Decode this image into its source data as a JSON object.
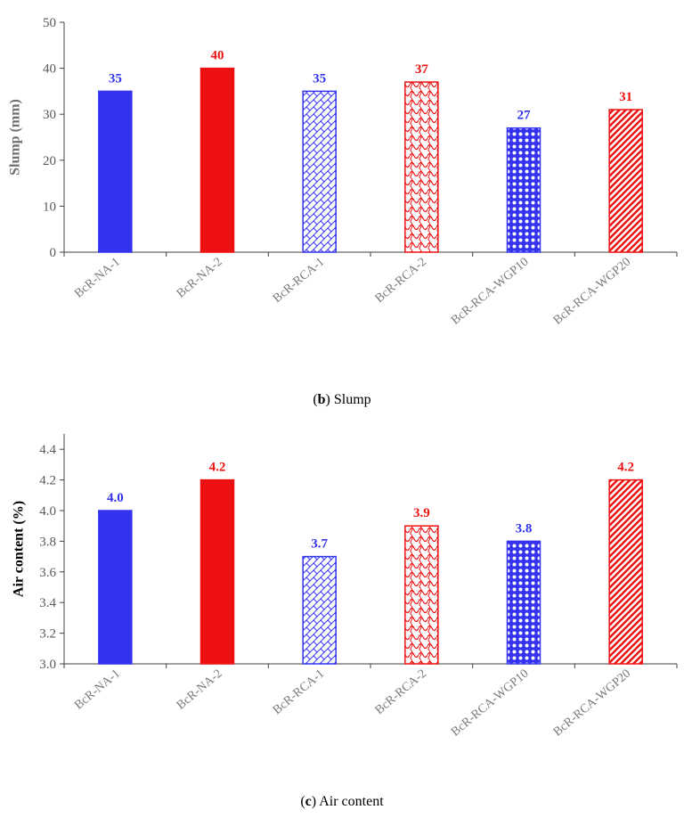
{
  "colors": {
    "blue": "#3333ee",
    "red": "#ee1111",
    "axis": "#404040",
    "tick_label": "#595959"
  },
  "chart_data": [
    {
      "type": "bar",
      "categories": [
        "BcR-NA-1",
        "BcR-NA-2",
        "BcR-RCA-1",
        "BcR-RCA-2",
        "BcR-RCA-WGP10",
        "BcR-RCA-WGP20"
      ],
      "values": [
        35,
        40,
        35,
        37,
        27,
        31
      ],
      "data_labels": [
        "35",
        "40",
        "35",
        "37",
        "27",
        "31"
      ],
      "ylabel": "Slump (mm)",
      "xlabel": "",
      "ylim": [
        0,
        50
      ],
      "yticks": [
        0,
        10,
        20,
        30,
        40,
        50
      ],
      "ytick_labels": [
        "0",
        "10",
        "20",
        "30",
        "40",
        "50"
      ],
      "bar_styles": [
        "solid-blue",
        "solid-red",
        "hatch-blue",
        "wave-red",
        "dots-blue",
        "stripe-red"
      ],
      "caption": {
        "letter": "b",
        "text": ") Slump",
        "open": "("
      }
    },
    {
      "type": "bar",
      "categories": [
        "BcR-NA-1",
        "BcR-NA-2",
        "BcR-RCA-1",
        "BcR-RCA-2",
        "BcR-RCA-WGP10",
        "BcR-RCA-WGP20"
      ],
      "values": [
        4.0,
        4.2,
        3.7,
        3.9,
        3.8,
        4.2
      ],
      "data_labels": [
        "4.0",
        "4.2",
        "3.7",
        "3.9",
        "3.8",
        "4.2"
      ],
      "ylabel": "Air content (%)",
      "xlabel": "",
      "ylim": [
        3.0,
        4.5
      ],
      "yticks": [
        3.0,
        3.2,
        3.4,
        3.6,
        3.8,
        4.0,
        4.2,
        4.4
      ],
      "ytick_labels": [
        "3.0",
        "3.2",
        "3.4",
        "3.6",
        "3.8",
        "4.0",
        "4.2",
        "4.4"
      ],
      "bar_styles": [
        "solid-blue",
        "solid-red",
        "hatch-blue",
        "wave-red",
        "dots-blue",
        "stripe-red"
      ],
      "caption": {
        "letter": "c",
        "text": ") Air content",
        "open": "("
      }
    }
  ]
}
